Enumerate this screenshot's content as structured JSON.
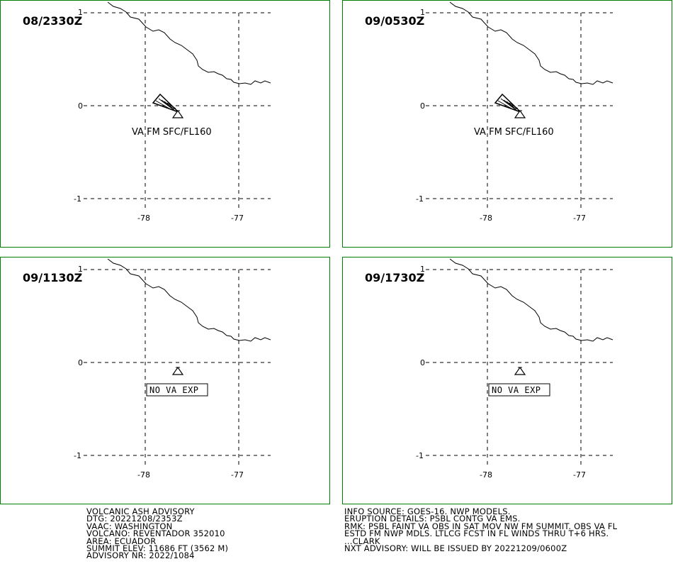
{
  "panels": [
    {
      "time": "08/2330Z",
      "lat_labels": [
        "1",
        "0",
        "-1"
      ],
      "lon_labels": [
        "-78",
        "-77"
      ],
      "ash_label": "VA FM SFC/FL160",
      "no_va_label": "",
      "has_plume": true
    },
    {
      "time": "09/0530Z",
      "lat_labels": [
        "1",
        "0",
        "-1"
      ],
      "lon_labels": [
        "-78",
        "-77"
      ],
      "ash_label": "VA FM SFC/FL160",
      "no_va_label": "",
      "has_plume": true
    },
    {
      "time": "09/1130Z",
      "lat_labels": [
        "1",
        "0",
        "-1"
      ],
      "lon_labels": [
        "-78",
        "-77"
      ],
      "ash_label": "",
      "no_va_label": "NO VA EXP",
      "has_plume": false
    },
    {
      "time": "09/1730Z",
      "lat_labels": [
        "1",
        "0",
        "-1"
      ],
      "lon_labels": [
        "-78",
        "-77"
      ],
      "ash_label": "",
      "no_va_label": "NO VA EXP",
      "has_plume": false
    }
  ],
  "advisory_left": [
    "VOLCANIC ASH ADVISORY",
    "DTG: 20221208/2353Z",
    "VAAC: WASHINGTON",
    "VOLCANO: REVENTADOR 352010",
    "AREA: ECUADOR",
    "SUMMIT ELEV: 11686 FT (3562 M)",
    "ADVISORY NR: 2022/1084"
  ],
  "advisory_right": [
    "INFO SOURCE: GOES-16. NWP MODELS.",
    "ERUPTION DETAILS: PSBL CONTG VA EMS.",
    "RMK: PSBL FAINT VA OBS IN SAT MOV NW FM SUMMIT. OBS VA FL",
    "ESTD FM NWP MDLS. LTLCG FCST IN FL WINDS THRU T+6 HRS.",
    "...CLARK",
    "NXT ADVISORY: WILL BE ISSUED BY 20221209/0600Z"
  ],
  "colors": {
    "frame": "#008000",
    "lines": "#000000"
  },
  "icons": {
    "volcano": "volcano-icon"
  }
}
